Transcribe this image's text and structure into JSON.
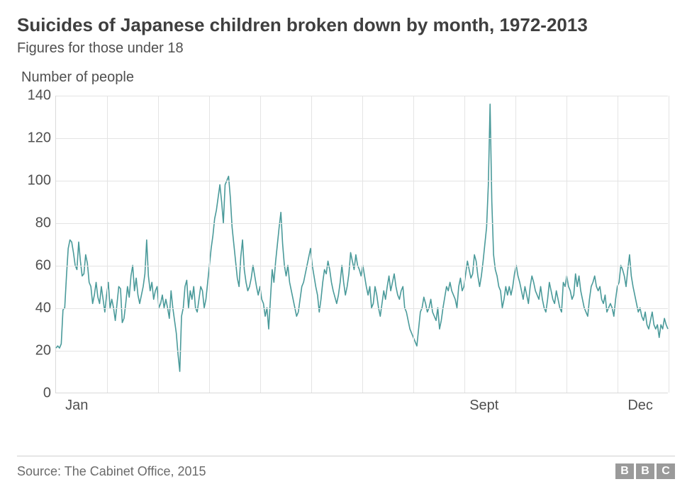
{
  "title": "Suicides of Japanese children broken down by month, 1972-2013",
  "subtitle": "Figures for those under 18",
  "yaxis_title": "Number of people",
  "source": "Source: The Cabinet Office, 2015",
  "logo_letters": [
    "B",
    "B",
    "C"
  ],
  "chart": {
    "type": "line",
    "line_color": "#4a9a9a",
    "line_width": 1.6,
    "background_color": "#ffffff",
    "grid_color": "#e4e4e4",
    "text_color": "#4f4f4f",
    "title_fontsize": 26,
    "label_fontsize": 20,
    "ylim": [
      0,
      140
    ],
    "ytick_step": 20,
    "yticks": [
      0,
      20,
      40,
      60,
      80,
      100,
      120,
      140
    ],
    "xticks": [
      {
        "label": "Jan",
        "pos": 0.035
      },
      {
        "label": "Sept",
        "pos": 0.7
      },
      {
        "label": "Dec",
        "pos": 0.955
      }
    ],
    "grid_v_positions": [
      0.0,
      0.083,
      0.167,
      0.25,
      0.333,
      0.417,
      0.5,
      0.583,
      0.667,
      0.75,
      0.833,
      0.917,
      1.0
    ],
    "values": [
      21,
      22,
      21,
      23,
      39,
      40,
      55,
      68,
      72,
      71,
      66,
      60,
      58,
      71,
      62,
      55,
      56,
      65,
      61,
      52,
      50,
      42,
      46,
      52,
      45,
      42,
      50,
      44,
      38,
      46,
      52,
      40,
      44,
      40,
      34,
      42,
      50,
      49,
      33,
      35,
      42,
      50,
      45,
      55,
      60,
      48,
      54,
      46,
      42,
      46,
      50,
      56,
      72,
      55,
      48,
      52,
      44,
      48,
      50,
      40,
      42,
      46,
      40,
      44,
      40,
      35,
      48,
      40,
      34,
      28,
      18,
      10,
      36,
      40,
      50,
      53,
      40,
      48,
      44,
      50,
      40,
      38,
      44,
      50,
      48,
      40,
      44,
      52,
      60,
      68,
      74,
      82,
      86,
      92,
      98,
      90,
      80,
      98,
      100,
      102,
      92,
      78,
      70,
      62,
      54,
      50,
      64,
      72,
      58,
      52,
      48,
      50,
      54,
      60,
      55,
      50,
      46,
      50,
      44,
      42,
      36,
      40,
      30,
      44,
      58,
      52,
      62,
      70,
      78,
      85,
      70,
      60,
      55,
      60,
      52,
      48,
      44,
      40,
      36,
      38,
      44,
      50,
      52,
      56,
      60,
      64,
      68,
      60,
      55,
      50,
      46,
      38,
      44,
      52,
      58,
      56,
      62,
      58,
      52,
      48,
      45,
      42,
      46,
      52,
      60,
      52,
      46,
      50,
      56,
      66,
      62,
      58,
      65,
      60,
      58,
      55,
      60,
      55,
      50,
      46,
      50,
      40,
      42,
      50,
      46,
      40,
      36,
      42,
      48,
      44,
      50,
      55,
      48,
      52,
      56,
      50,
      46,
      44,
      48,
      50,
      40,
      38,
      34,
      30,
      28,
      26,
      24,
      22,
      30,
      38,
      40,
      45,
      42,
      38,
      40,
      44,
      38,
      36,
      34,
      40,
      30,
      34,
      40,
      45,
      50,
      48,
      52,
      48,
      46,
      44,
      40,
      50,
      54,
      48,
      50,
      56,
      62,
      58,
      54,
      56,
      65,
      62,
      55,
      50,
      55,
      62,
      70,
      78,
      98,
      136,
      90,
      65,
      58,
      55,
      50,
      48,
      40,
      44,
      50,
      46,
      50,
      46,
      50,
      56,
      60,
      55,
      52,
      48,
      44,
      50,
      46,
      42,
      50,
      55,
      52,
      48,
      46,
      44,
      50,
      44,
      40,
      38,
      44,
      52,
      48,
      44,
      42,
      48,
      44,
      40,
      38,
      52,
      50,
      55,
      50,
      48,
      44,
      46,
      56,
      50,
      55,
      48,
      44,
      40,
      38,
      36,
      44,
      50,
      52,
      55,
      50,
      48,
      50,
      44,
      42,
      46,
      38,
      40,
      42,
      40,
      36,
      44,
      50,
      52,
      60,
      58,
      55,
      50,
      58,
      65,
      55,
      50,
      46,
      42,
      38,
      40,
      36,
      34,
      38,
      32,
      30,
      34,
      38,
      32,
      30,
      32,
      26,
      32,
      30,
      35,
      32,
      30
    ]
  }
}
